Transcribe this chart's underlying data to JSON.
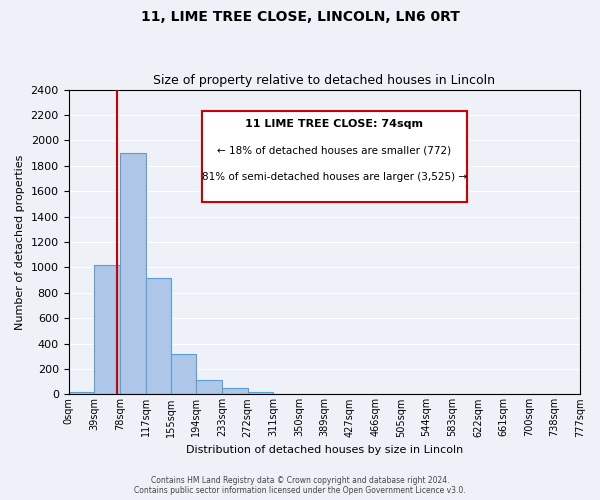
{
  "title": "11, LIME TREE CLOSE, LINCOLN, LN6 0RT",
  "subtitle": "Size of property relative to detached houses in Lincoln",
  "bar_heights": [
    20,
    1020,
    1900,
    920,
    320,
    110,
    50,
    20,
    0,
    0,
    0,
    0,
    0,
    0,
    0,
    0,
    0,
    0,
    0,
    0
  ],
  "bin_labels": [
    "0sqm",
    "39sqm",
    "78sqm",
    "117sqm",
    "155sqm",
    "194sqm",
    "233sqm",
    "272sqm",
    "311sqm",
    "350sqm",
    "389sqm",
    "427sqm",
    "466sqm",
    "505sqm",
    "544sqm",
    "583sqm",
    "622sqm",
    "661sqm",
    "700sqm",
    "738sqm",
    "777sqm"
  ],
  "bin_edges": [
    0,
    39,
    78,
    117,
    155,
    194,
    233,
    272,
    311,
    350,
    389,
    427,
    466,
    505,
    544,
    583,
    622,
    661,
    700,
    738,
    777
  ],
  "bar_color": "#aec6e8",
  "bar_edgecolor": "#5a9fd4",
  "ylim": [
    0,
    2400
  ],
  "yticks": [
    0,
    200,
    400,
    600,
    800,
    1000,
    1200,
    1400,
    1600,
    1800,
    2000,
    2200,
    2400
  ],
  "xlabel": "Distribution of detached houses by size in Lincoln",
  "ylabel": "Number of detached properties",
  "property_line_x": 74,
  "property_line_color": "#cc0000",
  "annotation_title": "11 LIME TREE CLOSE: 74sqm",
  "annotation_line1": "← 18% of detached houses are smaller (772)",
  "annotation_line2": "81% of semi-detached houses are larger (3,525) →",
  "annotation_box_color": "#ffffff",
  "annotation_box_edgecolor": "#cc0000",
  "footer_line1": "Contains HM Land Registry data © Crown copyright and database right 2024.",
  "footer_line2": "Contains public sector information licensed under the Open Government Licence v3.0.",
  "background_color": "#eef2f8",
  "grid_color": "#ffffff"
}
